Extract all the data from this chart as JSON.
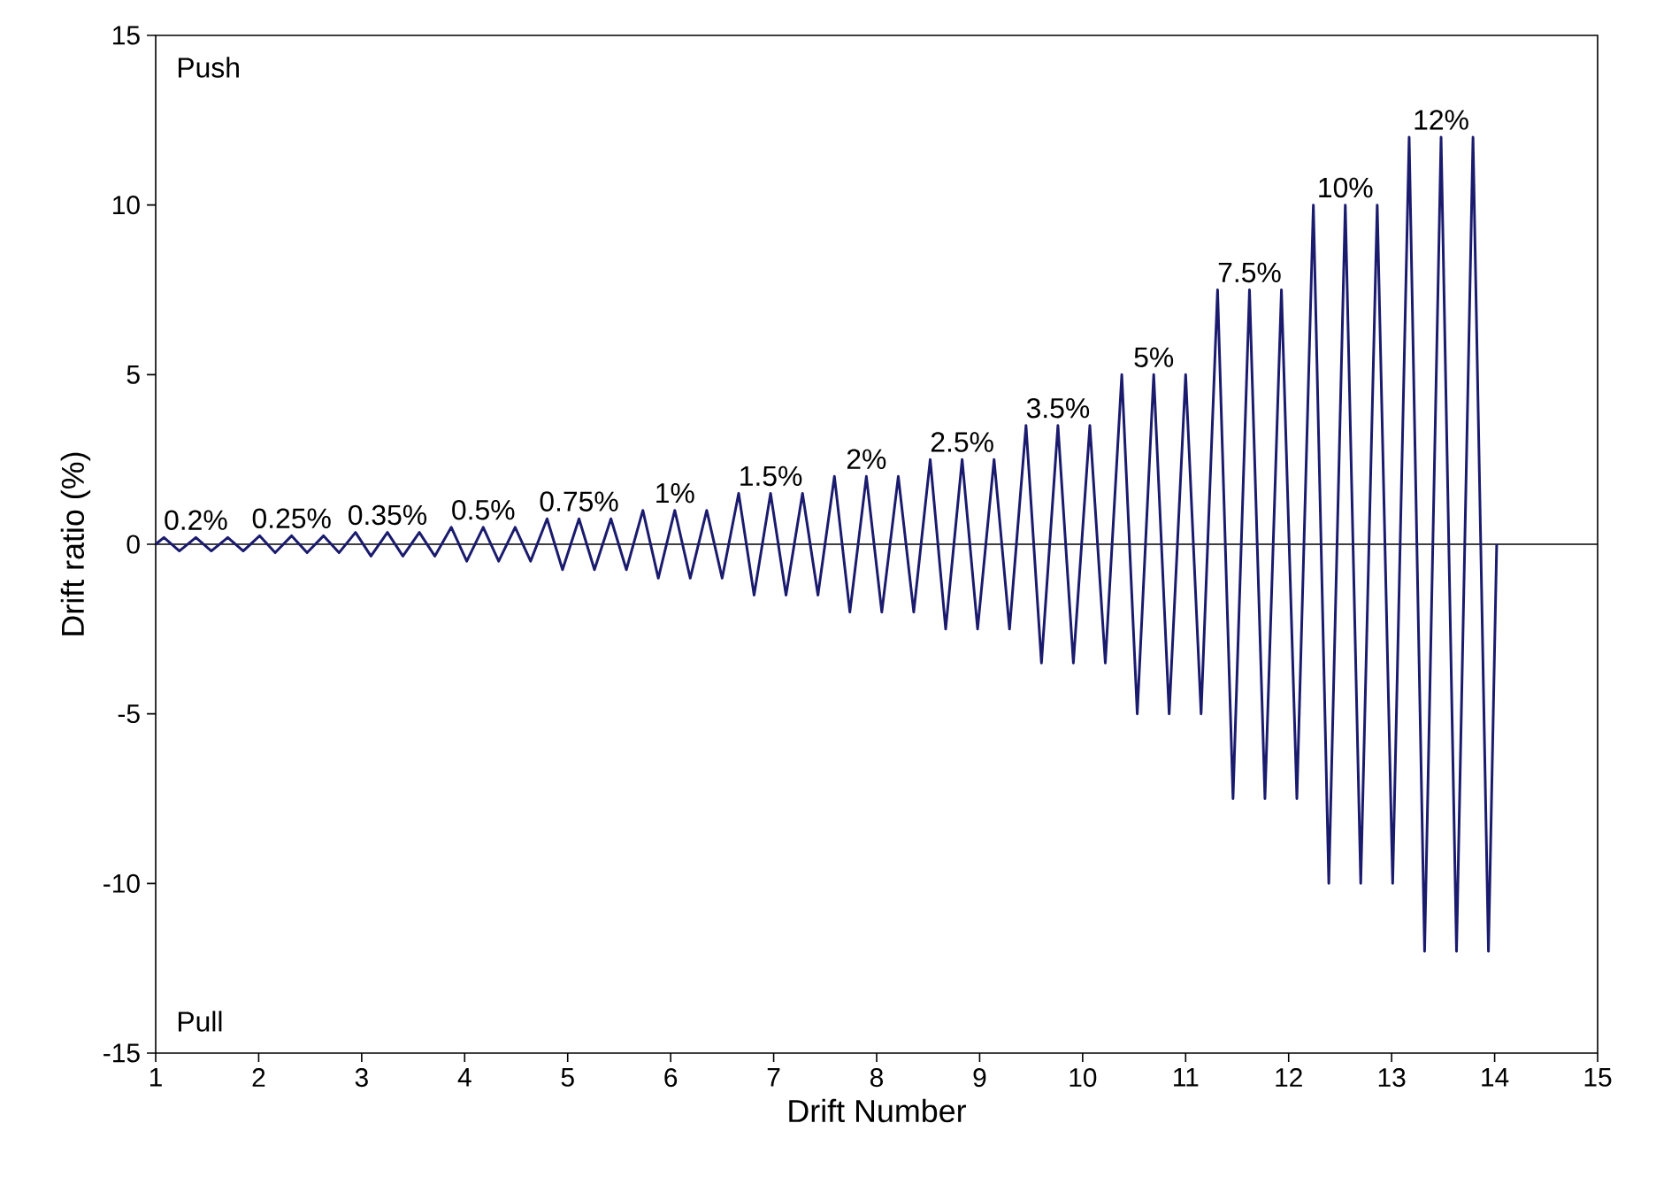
{
  "chart_data": {
    "type": "line",
    "xlabel": "Drift Number",
    "ylabel": "Drift ratio (%)",
    "xlim": [
      1,
      15
    ],
    "ylim": [
      -15,
      15
    ],
    "xticks": [
      1,
      2,
      3,
      4,
      5,
      6,
      7,
      8,
      9,
      10,
      11,
      12,
      13,
      14,
      15
    ],
    "yticks": [
      -15,
      -10,
      -5,
      0,
      5,
      10,
      15
    ],
    "grid": false,
    "series": [
      {
        "color": "#1b1b6e",
        "line_style": "solid",
        "marker": "none",
        "x": [
          1,
          1.08,
          1.23,
          1.39,
          1.54,
          1.7,
          1.85,
          2.01,
          2.16,
          2.32,
          2.47,
          2.63,
          2.78,
          2.94,
          3.09,
          3.25,
          3.4,
          3.56,
          3.71,
          3.87,
          4.02,
          4.18,
          4.33,
          4.49,
          4.64,
          4.8,
          4.95,
          5.11,
          5.26,
          5.42,
          5.57,
          5.73,
          5.88,
          6.04,
          6.19,
          6.35,
          6.5,
          6.66,
          6.81,
          6.97,
          7.12,
          7.28,
          7.43,
          7.59,
          7.74,
          7.9,
          8.05,
          8.21,
          8.36,
          8.52,
          8.67,
          8.83,
          8.98,
          9.14,
          9.29,
          9.45,
          9.6,
          9.76,
          9.91,
          10.07,
          10.22,
          10.38,
          10.53,
          10.69,
          10.84,
          11.0,
          11.15,
          11.31,
          11.46,
          11.62,
          11.77,
          11.93,
          12.08,
          12.24,
          12.39,
          12.55,
          12.7,
          12.86,
          13.01,
          13.17,
          13.32,
          13.48,
          13.63,
          13.79,
          13.94,
          14.02
        ],
        "values": [
          0,
          0.2,
          -0.2,
          0.2,
          -0.2,
          0.2,
          -0.2,
          0.25,
          -0.25,
          0.25,
          -0.25,
          0.25,
          -0.25,
          0.35,
          -0.35,
          0.35,
          -0.35,
          0.35,
          -0.35,
          0.5,
          -0.5,
          0.5,
          -0.5,
          0.5,
          -0.5,
          0.75,
          -0.75,
          0.75,
          -0.75,
          0.75,
          -0.75,
          1,
          -1,
          1,
          -1,
          1,
          -1,
          1.5,
          -1.5,
          1.5,
          -1.5,
          1.5,
          -1.5,
          2,
          -2,
          2,
          -2,
          2,
          -2,
          2.5,
          -2.5,
          2.5,
          -2.5,
          2.5,
          -2.5,
          3.5,
          -3.5,
          3.5,
          -3.5,
          3.5,
          -3.5,
          5,
          -5,
          5,
          -5,
          5,
          -5,
          7.5,
          -7.5,
          7.5,
          -7.5,
          7.5,
          -7.5,
          10,
          -10,
          10,
          -10,
          10,
          -10,
          12,
          -12,
          12,
          -12,
          12,
          -12,
          0
        ]
      }
    ],
    "ref_lines": [
      {
        "axis": "y",
        "value": 0,
        "color": "#000000"
      }
    ],
    "annotations": [
      "Push",
      "Pull",
      {
        "text": "0.2%",
        "x": 1.39,
        "y": 0.2
      },
      {
        "text": "0.25%",
        "x": 2.32,
        "y": 0.25
      },
      {
        "text": "0.35%",
        "x": 3.25,
        "y": 0.35
      },
      {
        "text": "0.5%",
        "x": 4.18,
        "y": 0.5
      },
      {
        "text": "0.75%",
        "x": 5.11,
        "y": 0.75
      },
      {
        "text": "1%",
        "x": 6.04,
        "y": 1
      },
      {
        "text": "1.5%",
        "x": 6.97,
        "y": 1.5
      },
      {
        "text": "2%",
        "x": 7.9,
        "y": 2
      },
      {
        "text": "2.5%",
        "x": 8.83,
        "y": 2.5
      },
      {
        "text": "3.5%",
        "x": 9.76,
        "y": 3.5
      },
      {
        "text": "5%",
        "x": 10.69,
        "y": 5
      },
      {
        "text": "7.5%",
        "x": 11.62,
        "y": 7.5
      },
      {
        "text": "10%",
        "x": 12.55,
        "y": 10
      },
      {
        "text": "12%",
        "x": 13.48,
        "y": 12
      }
    ]
  }
}
